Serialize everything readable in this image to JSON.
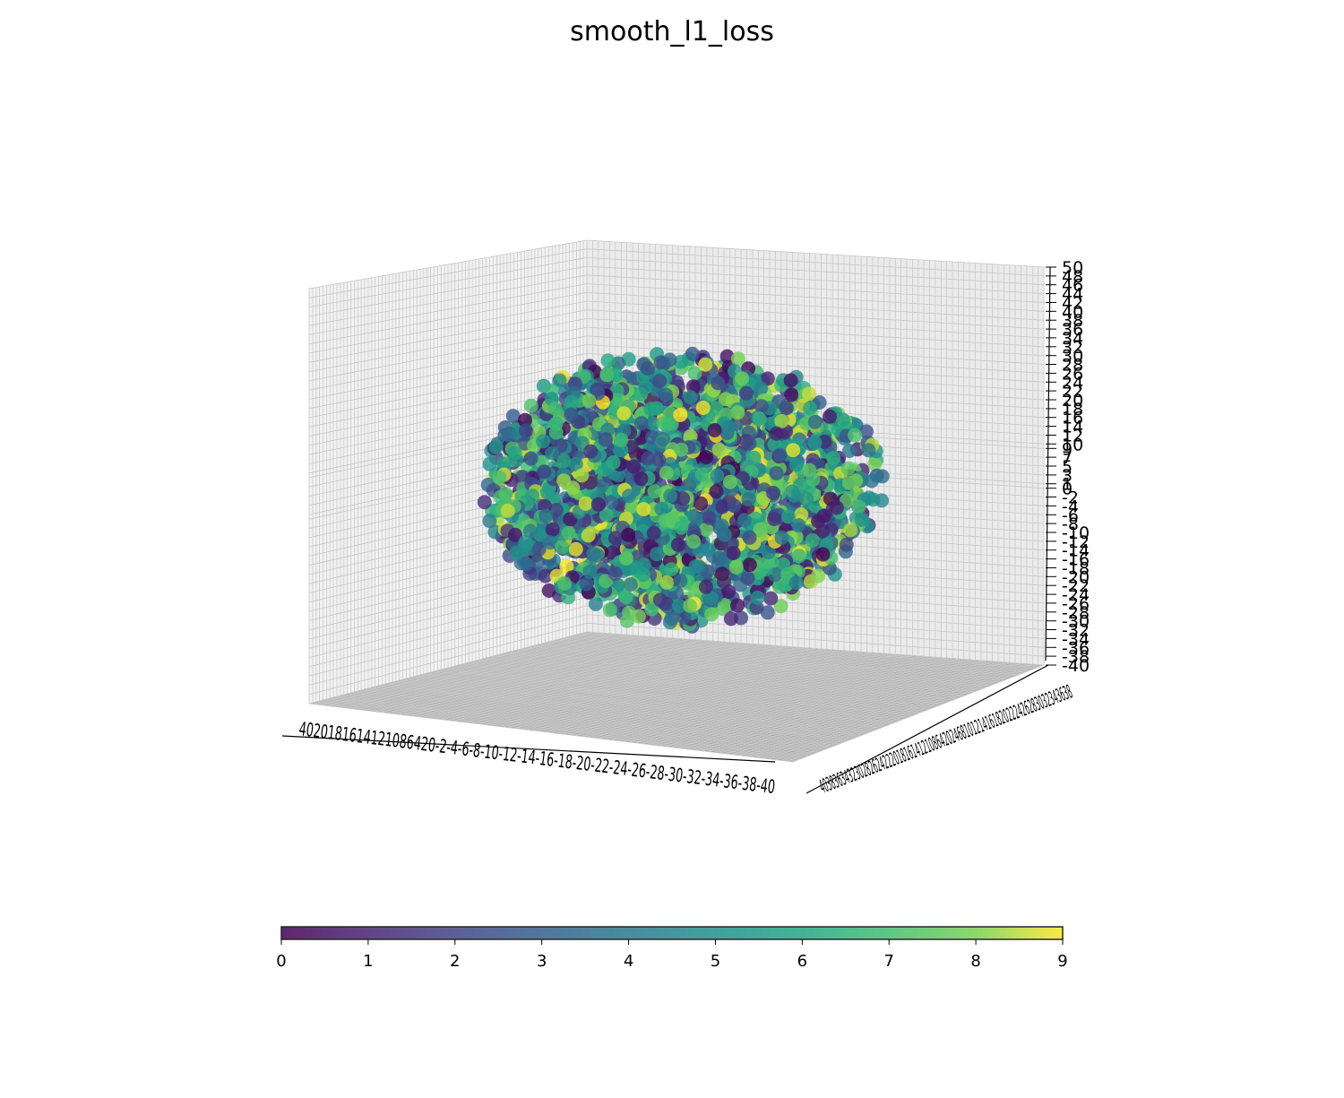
{
  "chart_data": {
    "type": "scatter",
    "projection": "3d",
    "title": "smooth_l1_loss",
    "xlabel": "",
    "ylabel": "",
    "zlabel": "",
    "xlim": [
      -40,
      40
    ],
    "ylim": [
      -40,
      40
    ],
    "zlim": [
      -40,
      50
    ],
    "z_ticks": [
      -40,
      -38,
      -36,
      -34,
      -32,
      -30,
      -28,
      -26,
      -24,
      -22,
      -20,
      -18,
      -16,
      -14,
      -12,
      -10,
      -8,
      -6,
      -4,
      -2,
      0,
      1,
      3,
      5,
      7,
      9,
      10,
      12,
      14,
      16,
      18,
      20,
      22,
      24,
      26,
      28,
      30,
      32,
      34,
      36,
      38,
      40,
      42,
      44,
      46,
      48,
      50
    ],
    "x_tick_label_text": "4020181614121086420-2-4-6-8-10-12-14-16-18-20-22-24-26-28-30-32-34-36-38-40",
    "y_tick_label_text": "40383634323028262422201816141210864202468101214161820222426283032343638",
    "point_count_note": "",
    "color_scale": {
      "colormap": "viridis",
      "range": [
        0,
        9
      ],
      "ticks": [
        0,
        1,
        2,
        3,
        4,
        5,
        6,
        7,
        8,
        9
      ],
      "orientation": "horizontal",
      "placement": "bottom"
    },
    "cloud": {
      "shape": "sphere",
      "center": [
        0,
        0,
        5
      ],
      "radius": 30,
      "n_points": 2400,
      "color_values": "uniform random 0-9"
    },
    "grid": true,
    "alpha": 0.8
  },
  "colors": {
    "pane_left": "#f2f2f2",
    "pane_back": "#ebebeb",
    "pane_floor": "#b0b0b0",
    "grid": "#c8c8c8"
  }
}
